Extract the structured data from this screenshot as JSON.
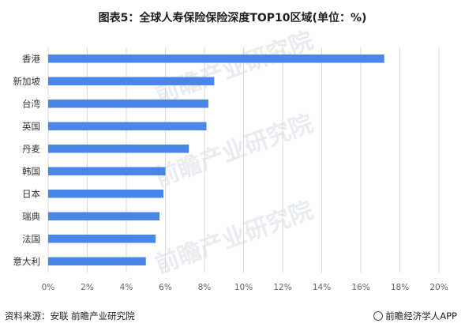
{
  "chart_data": {
    "type": "bar",
    "orientation": "horizontal",
    "title": "图表5：全球人寿保险保险深度TOP10区域(单位：%)",
    "categories": [
      "香港",
      "新加坡",
      "台湾",
      "英国",
      "丹麦",
      "韩国",
      "日本",
      "瑞典",
      "法国",
      "意大利"
    ],
    "values": [
      17.2,
      8.5,
      8.2,
      8.1,
      7.2,
      6.0,
      5.9,
      5.7,
      5.5,
      5.0
    ],
    "xlim": [
      0,
      20
    ],
    "xticks": [
      "0%",
      "2%",
      "4%",
      "6%",
      "8%",
      "10%",
      "12%",
      "14%",
      "16%",
      "18%",
      "20%"
    ],
    "grid": true,
    "bar_color": "#4a86e8",
    "grid_color": "#d9d9d9"
  },
  "watermark": "前瞻产业研究院",
  "footer": {
    "source": "资料来源：安联 前瞻产业研究院",
    "brand": "前瞻经济学人APP"
  }
}
